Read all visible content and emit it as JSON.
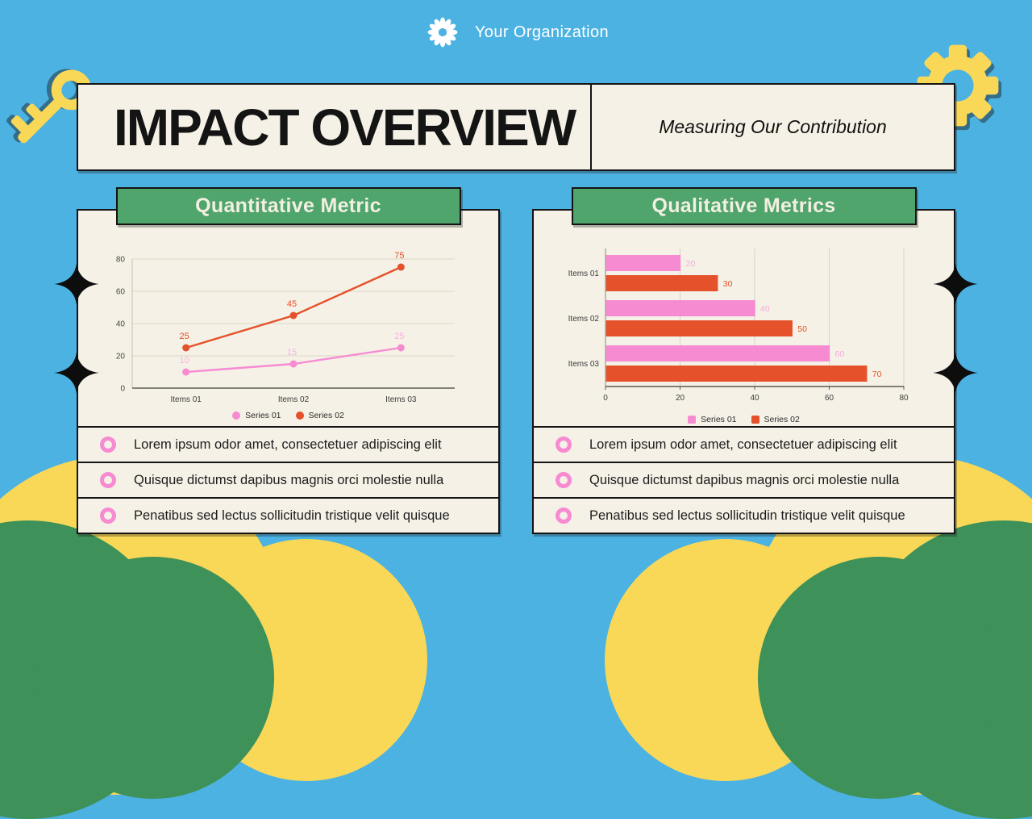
{
  "colors": {
    "background": "#4CB2E2",
    "panel": "#F5F1E6",
    "ink": "#141414",
    "green": "#4FA56B",
    "green_cloud": "#3E9158",
    "yellow": "#F9D858",
    "pink": "#F78BD2",
    "orange": "#E5512B",
    "cream_text": "#F3EFE2"
  },
  "header": {
    "org_name": "Your Organization",
    "logo_icon": "flower-burst-icon"
  },
  "title_bar": {
    "title": "IMPACT OVERVIEW",
    "subtitle": "Measuring Our Contribution"
  },
  "panels": [
    {
      "header": "Quantitative Metric",
      "bullets": [
        "Lorem ipsum odor amet, consectetuer adipiscing elit",
        "Quisque dictumst dapibus magnis orci molestie nulla",
        "Penatibus sed lectus sollicitudin tristique velit quisque"
      ]
    },
    {
      "header": "Qualitative Metrics",
      "bullets": [
        "Lorem ipsum odor amet, consectetuer adipiscing elit",
        "Quisque dictumst dapibus magnis orci molestie nulla",
        "Penatibus sed lectus sollicitudin tristique velit quisque"
      ]
    }
  ],
  "chart_data": [
    {
      "type": "line",
      "title": "",
      "categories": [
        "Items 01",
        "Items 02",
        "Items 03"
      ],
      "series": [
        {
          "name": "Series 01",
          "values": [
            10,
            15,
            25
          ],
          "color": "#F78BD2",
          "label_color": "#F6B3E2"
        },
        {
          "name": "Series 02",
          "values": [
            25,
            45,
            75
          ],
          "color": "#E5512B",
          "label_color": "#E5512B"
        }
      ],
      "ylim": [
        0,
        80
      ],
      "yticks": [
        0,
        20,
        40,
        60,
        80
      ],
      "grid": "horizontal",
      "legend_position": "bottom",
      "marker": "circle"
    },
    {
      "type": "bar",
      "orientation": "horizontal",
      "title": "",
      "categories": [
        "Items 01",
        "Items 02",
        "Items 03"
      ],
      "series": [
        {
          "name": "Series 01",
          "values": [
            20,
            40,
            60
          ],
          "color": "#F78BD2",
          "label_color": "#F6A9DE"
        },
        {
          "name": "Series 02",
          "values": [
            30,
            50,
            70
          ],
          "color": "#E5512B",
          "label_color": "#E5512B"
        }
      ],
      "xlim": [
        0,
        80
      ],
      "xticks": [
        0,
        20,
        40,
        60,
        80
      ],
      "grid": "vertical",
      "legend_position": "bottom",
      "marker": "square"
    }
  ]
}
